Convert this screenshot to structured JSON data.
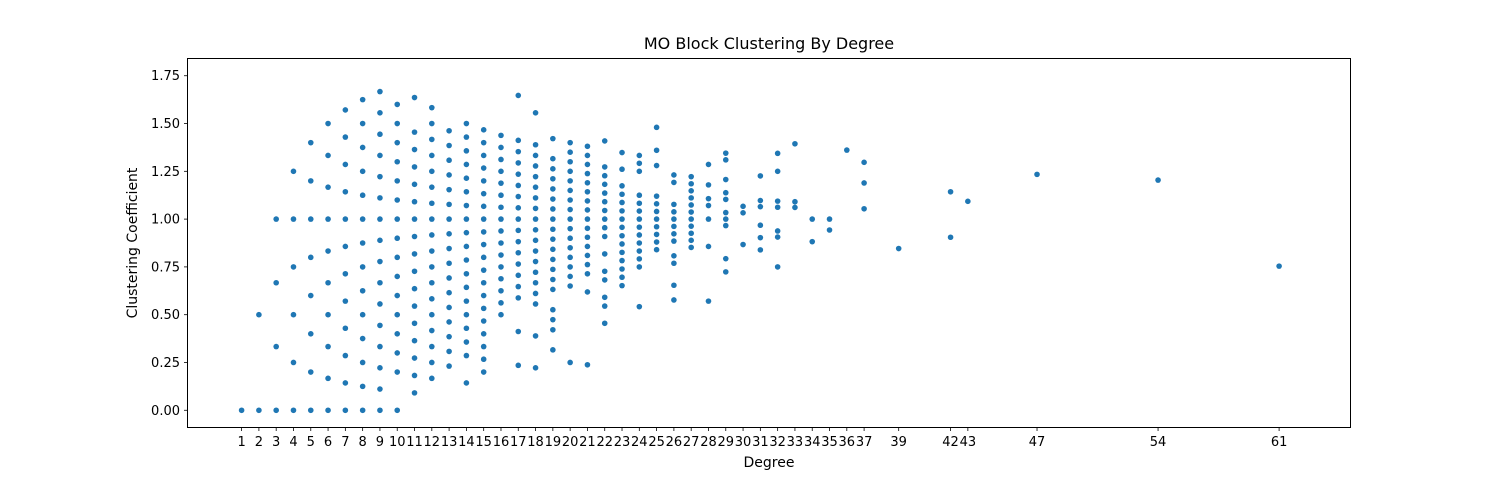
{
  "chart_data": {
    "type": "scatter",
    "title": "MO Block Clustering By Degree",
    "xlabel": "Degree",
    "ylabel": "Clustering Coefficient",
    "xlim": [
      -2.1,
      65.1
    ],
    "ylim": [
      -0.0875,
      1.8375
    ],
    "x_ticks": [
      1,
      2,
      3,
      4,
      5,
      6,
      7,
      8,
      9,
      10,
      11,
      12,
      13,
      14,
      15,
      16,
      17,
      18,
      19,
      20,
      21,
      22,
      23,
      24,
      25,
      26,
      27,
      28,
      29,
      30,
      31,
      32,
      33,
      34,
      35,
      36,
      37,
      39,
      42,
      43,
      47,
      54,
      61
    ],
    "y_ticks": [
      "0.00",
      "0.25",
      "0.50",
      "0.75",
      "1.00",
      "1.25",
      "1.50",
      "1.75"
    ],
    "marker_color": "#1f77b4",
    "grid": false,
    "points": [
      [
        1,
        0
      ],
      [
        2,
        0
      ],
      [
        2,
        0.5
      ],
      [
        3,
        0
      ],
      [
        3,
        0.333
      ],
      [
        3,
        0.667
      ],
      [
        3,
        1.0
      ],
      [
        4,
        0
      ],
      [
        4,
        0.25
      ],
      [
        4,
        0.5
      ],
      [
        4,
        0.75
      ],
      [
        4,
        1.0
      ],
      [
        4,
        1.25
      ],
      [
        5,
        0
      ],
      [
        5,
        0.2
      ],
      [
        5,
        0.4
      ],
      [
        5,
        0.6
      ],
      [
        5,
        0.8
      ],
      [
        5,
        1.0
      ],
      [
        5,
        1.2
      ],
      [
        5,
        1.4
      ],
      [
        6,
        0
      ],
      [
        6,
        0.167
      ],
      [
        6,
        0.333
      ],
      [
        6,
        0.5
      ],
      [
        6,
        0.667
      ],
      [
        6,
        0.833
      ],
      [
        6,
        1.0
      ],
      [
        6,
        1.167
      ],
      [
        6,
        1.333
      ],
      [
        6,
        1.5
      ],
      [
        7,
        0
      ],
      [
        7,
        0.143
      ],
      [
        7,
        0.286
      ],
      [
        7,
        0.429
      ],
      [
        7,
        0.571
      ],
      [
        7,
        0.714
      ],
      [
        7,
        0.857
      ],
      [
        7,
        1.0
      ],
      [
        7,
        1.143
      ],
      [
        7,
        1.286
      ],
      [
        7,
        1.429
      ],
      [
        7,
        1.571
      ],
      [
        8,
        0
      ],
      [
        8,
        0.125
      ],
      [
        8,
        0.25
      ],
      [
        8,
        0.375
      ],
      [
        8,
        0.5
      ],
      [
        8,
        0.625
      ],
      [
        8,
        0.75
      ],
      [
        8,
        0.875
      ],
      [
        8,
        1.0
      ],
      [
        8,
        1.125
      ],
      [
        8,
        1.25
      ],
      [
        8,
        1.375
      ],
      [
        8,
        1.5
      ],
      [
        8,
        1.625
      ],
      [
        9,
        0
      ],
      [
        9,
        0.111
      ],
      [
        9,
        0.222
      ],
      [
        9,
        0.333
      ],
      [
        9,
        0.444
      ],
      [
        9,
        0.556
      ],
      [
        9,
        0.667
      ],
      [
        9,
        0.778
      ],
      [
        9,
        0.889
      ],
      [
        9,
        1.0
      ],
      [
        9,
        1.111
      ],
      [
        9,
        1.222
      ],
      [
        9,
        1.333
      ],
      [
        9,
        1.444
      ],
      [
        9,
        1.556
      ],
      [
        9,
        1.667
      ],
      [
        10,
        0
      ],
      [
        10,
        0.2
      ],
      [
        10,
        0.3
      ],
      [
        10,
        0.4
      ],
      [
        10,
        0.5
      ],
      [
        10,
        0.6
      ],
      [
        10,
        0.7
      ],
      [
        10,
        0.8
      ],
      [
        10,
        0.9
      ],
      [
        10,
        1.0
      ],
      [
        10,
        1.1
      ],
      [
        10,
        1.2
      ],
      [
        10,
        1.3
      ],
      [
        10,
        1.4
      ],
      [
        10,
        1.5
      ],
      [
        10,
        1.6
      ],
      [
        11,
        0.091
      ],
      [
        11,
        0.182
      ],
      [
        11,
        0.273
      ],
      [
        11,
        0.364
      ],
      [
        11,
        0.455
      ],
      [
        11,
        0.545
      ],
      [
        11,
        0.636
      ],
      [
        11,
        0.727
      ],
      [
        11,
        0.818
      ],
      [
        11,
        0.909
      ],
      [
        11,
        1.0
      ],
      [
        11,
        1.091
      ],
      [
        11,
        1.182
      ],
      [
        11,
        1.273
      ],
      [
        11,
        1.364
      ],
      [
        11,
        1.455
      ],
      [
        11,
        1.636
      ],
      [
        12,
        0.167
      ],
      [
        12,
        0.25
      ],
      [
        12,
        0.333
      ],
      [
        12,
        0.417
      ],
      [
        12,
        0.5
      ],
      [
        12,
        0.583
      ],
      [
        12,
        0.667
      ],
      [
        12,
        0.75
      ],
      [
        12,
        0.833
      ],
      [
        12,
        0.917
      ],
      [
        12,
        1.0
      ],
      [
        12,
        1.083
      ],
      [
        12,
        1.167
      ],
      [
        12,
        1.25
      ],
      [
        12,
        1.333
      ],
      [
        12,
        1.417
      ],
      [
        12,
        1.5
      ],
      [
        12,
        1.583
      ],
      [
        13,
        0.231
      ],
      [
        13,
        0.308
      ],
      [
        13,
        0.385
      ],
      [
        13,
        0.462
      ],
      [
        13,
        0.538
      ],
      [
        13,
        0.615
      ],
      [
        13,
        0.692
      ],
      [
        13,
        0.769
      ],
      [
        13,
        0.846
      ],
      [
        13,
        0.923
      ],
      [
        13,
        1.0
      ],
      [
        13,
        1.077
      ],
      [
        13,
        1.154
      ],
      [
        13,
        1.231
      ],
      [
        13,
        1.308
      ],
      [
        13,
        1.385
      ],
      [
        13,
        1.462
      ],
      [
        14,
        0.143
      ],
      [
        14,
        0.286
      ],
      [
        14,
        0.357
      ],
      [
        14,
        0.429
      ],
      [
        14,
        0.5
      ],
      [
        14,
        0.571
      ],
      [
        14,
        0.643
      ],
      [
        14,
        0.714
      ],
      [
        14,
        0.786
      ],
      [
        14,
        0.857
      ],
      [
        14,
        0.929
      ],
      [
        14,
        1.0
      ],
      [
        14,
        1.071
      ],
      [
        14,
        1.143
      ],
      [
        14,
        1.214
      ],
      [
        14,
        1.286
      ],
      [
        14,
        1.357
      ],
      [
        14,
        1.429
      ],
      [
        14,
        1.5
      ],
      [
        15,
        0.2
      ],
      [
        15,
        0.267
      ],
      [
        15,
        0.333
      ],
      [
        15,
        0.4
      ],
      [
        15,
        0.467
      ],
      [
        15,
        0.533
      ],
      [
        15,
        0.6
      ],
      [
        15,
        0.667
      ],
      [
        15,
        0.733
      ],
      [
        15,
        0.8
      ],
      [
        15,
        0.867
      ],
      [
        15,
        0.933
      ],
      [
        15,
        1.0
      ],
      [
        15,
        1.067
      ],
      [
        15,
        1.133
      ],
      [
        15,
        1.2
      ],
      [
        15,
        1.267
      ],
      [
        15,
        1.333
      ],
      [
        15,
        1.4
      ],
      [
        15,
        1.467
      ],
      [
        16,
        0.5
      ],
      [
        16,
        0.562
      ],
      [
        16,
        0.625
      ],
      [
        16,
        0.688
      ],
      [
        16,
        0.75
      ],
      [
        16,
        0.812
      ],
      [
        16,
        0.875
      ],
      [
        16,
        0.938
      ],
      [
        16,
        1.0
      ],
      [
        16,
        1.062
      ],
      [
        16,
        1.125
      ],
      [
        16,
        1.188
      ],
      [
        16,
        1.25
      ],
      [
        16,
        1.312
      ],
      [
        16,
        1.375
      ],
      [
        16,
        1.438
      ],
      [
        17,
        0.235
      ],
      [
        17,
        0.412
      ],
      [
        17,
        0.588
      ],
      [
        17,
        0.647
      ],
      [
        17,
        0.706
      ],
      [
        17,
        0.765
      ],
      [
        17,
        0.824
      ],
      [
        17,
        0.882
      ],
      [
        17,
        0.941
      ],
      [
        17,
        1.0
      ],
      [
        17,
        1.059
      ],
      [
        17,
        1.118
      ],
      [
        17,
        1.176
      ],
      [
        17,
        1.235
      ],
      [
        17,
        1.294
      ],
      [
        17,
        1.353
      ],
      [
        17,
        1.412
      ],
      [
        17,
        1.647
      ],
      [
        18,
        0.222
      ],
      [
        18,
        0.389
      ],
      [
        18,
        0.556
      ],
      [
        18,
        0.611
      ],
      [
        18,
        0.667
      ],
      [
        18,
        0.722
      ],
      [
        18,
        0.778
      ],
      [
        18,
        0.833
      ],
      [
        18,
        0.889
      ],
      [
        18,
        0.944
      ],
      [
        18,
        1.0
      ],
      [
        18,
        1.056
      ],
      [
        18,
        1.111
      ],
      [
        18,
        1.167
      ],
      [
        18,
        1.222
      ],
      [
        18,
        1.278
      ],
      [
        18,
        1.333
      ],
      [
        18,
        1.389
      ],
      [
        18,
        1.556
      ],
      [
        19,
        0.316
      ],
      [
        19,
        0.421
      ],
      [
        19,
        0.474
      ],
      [
        19,
        0.526
      ],
      [
        19,
        0.632
      ],
      [
        19,
        0.684
      ],
      [
        19,
        0.737
      ],
      [
        19,
        0.789
      ],
      [
        19,
        0.842
      ],
      [
        19,
        0.895
      ],
      [
        19,
        0.947
      ],
      [
        19,
        1.0
      ],
      [
        19,
        1.053
      ],
      [
        19,
        1.105
      ],
      [
        19,
        1.158
      ],
      [
        19,
        1.211
      ],
      [
        19,
        1.263
      ],
      [
        19,
        1.316
      ],
      [
        19,
        1.421
      ],
      [
        20,
        0.25
      ],
      [
        20,
        0.65
      ],
      [
        20,
        0.7
      ],
      [
        20,
        0.75
      ],
      [
        20,
        0.8
      ],
      [
        20,
        0.85
      ],
      [
        20,
        0.9
      ],
      [
        20,
        0.95
      ],
      [
        20,
        1.0
      ],
      [
        20,
        1.05
      ],
      [
        20,
        1.1
      ],
      [
        20,
        1.15
      ],
      [
        20,
        1.2
      ],
      [
        20,
        1.25
      ],
      [
        20,
        1.3
      ],
      [
        20,
        1.35
      ],
      [
        20,
        1.4
      ],
      [
        21,
        0.238
      ],
      [
        21,
        0.619
      ],
      [
        21,
        0.714
      ],
      [
        21,
        0.762
      ],
      [
        21,
        0.81
      ],
      [
        21,
        0.857
      ],
      [
        21,
        0.905
      ],
      [
        21,
        0.952
      ],
      [
        21,
        1.0
      ],
      [
        21,
        1.048
      ],
      [
        21,
        1.095
      ],
      [
        21,
        1.143
      ],
      [
        21,
        1.19
      ],
      [
        21,
        1.238
      ],
      [
        21,
        1.286
      ],
      [
        21,
        1.333
      ],
      [
        21,
        1.381
      ],
      [
        22,
        0.455
      ],
      [
        22,
        0.545
      ],
      [
        22,
        0.591
      ],
      [
        22,
        0.682
      ],
      [
        22,
        0.727
      ],
      [
        22,
        0.818
      ],
      [
        22,
        0.909
      ],
      [
        22,
        0.955
      ],
      [
        22,
        1.0
      ],
      [
        22,
        1.045
      ],
      [
        22,
        1.091
      ],
      [
        22,
        1.136
      ],
      [
        22,
        1.182
      ],
      [
        22,
        1.227
      ],
      [
        22,
        1.273
      ],
      [
        22,
        1.409
      ],
      [
        23,
        0.652
      ],
      [
        23,
        0.696
      ],
      [
        23,
        0.739
      ],
      [
        23,
        0.783
      ],
      [
        23,
        0.826
      ],
      [
        23,
        0.87
      ],
      [
        23,
        0.913
      ],
      [
        23,
        0.957
      ],
      [
        23,
        1.0
      ],
      [
        23,
        1.043
      ],
      [
        23,
        1.087
      ],
      [
        23,
        1.13
      ],
      [
        23,
        1.174
      ],
      [
        23,
        1.261
      ],
      [
        23,
        1.348
      ],
      [
        24,
        0.542
      ],
      [
        24,
        0.75
      ],
      [
        24,
        0.792
      ],
      [
        24,
        0.833
      ],
      [
        24,
        0.875
      ],
      [
        24,
        0.917
      ],
      [
        24,
        0.958
      ],
      [
        24,
        1.0
      ],
      [
        24,
        1.042
      ],
      [
        24,
        1.083
      ],
      [
        24,
        1.125
      ],
      [
        24,
        1.25
      ],
      [
        24,
        1.292
      ],
      [
        24,
        1.333
      ],
      [
        25,
        0.84
      ],
      [
        25,
        0.88
      ],
      [
        25,
        0.92
      ],
      [
        25,
        0.96
      ],
      [
        25,
        1.0
      ],
      [
        25,
        1.04
      ],
      [
        25,
        1.08
      ],
      [
        25,
        1.12
      ],
      [
        25,
        1.28
      ],
      [
        25,
        1.36
      ],
      [
        25,
        1.48
      ],
      [
        26,
        0.577
      ],
      [
        26,
        0.654
      ],
      [
        26,
        0.769
      ],
      [
        26,
        0.808
      ],
      [
        26,
        0.885
      ],
      [
        26,
        0.923
      ],
      [
        26,
        0.962
      ],
      [
        26,
        1.0
      ],
      [
        26,
        1.038
      ],
      [
        26,
        1.077
      ],
      [
        26,
        1.192
      ],
      [
        26,
        1.231
      ],
      [
        27,
        0.852
      ],
      [
        27,
        0.889
      ],
      [
        27,
        0.926
      ],
      [
        27,
        0.963
      ],
      [
        27,
        1.0
      ],
      [
        27,
        1.037
      ],
      [
        27,
        1.074
      ],
      [
        27,
        1.111
      ],
      [
        27,
        1.148
      ],
      [
        27,
        1.185
      ],
      [
        27,
        1.222
      ],
      [
        28,
        0.571
      ],
      [
        28,
        0.857
      ],
      [
        28,
        1.0
      ],
      [
        28,
        1.071
      ],
      [
        28,
        1.107
      ],
      [
        28,
        1.179
      ],
      [
        28,
        1.286
      ],
      [
        29,
        0.724
      ],
      [
        29,
        0.793
      ],
      [
        29,
        0.966
      ],
      [
        29,
        1.0
      ],
      [
        29,
        1.034
      ],
      [
        29,
        1.103
      ],
      [
        29,
        1.138
      ],
      [
        29,
        1.207
      ],
      [
        29,
        1.31
      ],
      [
        29,
        1.345
      ],
      [
        30,
        0.867
      ],
      [
        30,
        1.033
      ],
      [
        30,
        1.067
      ],
      [
        31,
        0.839
      ],
      [
        31,
        0.903
      ],
      [
        31,
        0.968
      ],
      [
        31,
        1.065
      ],
      [
        31,
        1.097
      ],
      [
        31,
        1.226
      ],
      [
        32,
        0.75
      ],
      [
        32,
        0.906
      ],
      [
        32,
        0.938
      ],
      [
        32,
        1.062
      ],
      [
        32,
        1.094
      ],
      [
        32,
        1.25
      ],
      [
        32,
        1.344
      ],
      [
        33,
        1.061
      ],
      [
        33,
        1.091
      ],
      [
        33,
        1.394
      ],
      [
        34,
        0.882
      ],
      [
        34,
        1.0
      ],
      [
        35,
        0.943
      ],
      [
        35,
        1.0
      ],
      [
        36,
        1.361
      ],
      [
        37,
        1.054
      ],
      [
        37,
        1.189
      ],
      [
        37,
        1.297
      ],
      [
        39,
        0.846
      ],
      [
        42,
        0.905
      ],
      [
        42,
        1.143
      ],
      [
        43,
        1.093
      ],
      [
        47,
        1.234
      ],
      [
        54,
        1.204
      ],
      [
        61,
        0.754
      ]
    ]
  }
}
